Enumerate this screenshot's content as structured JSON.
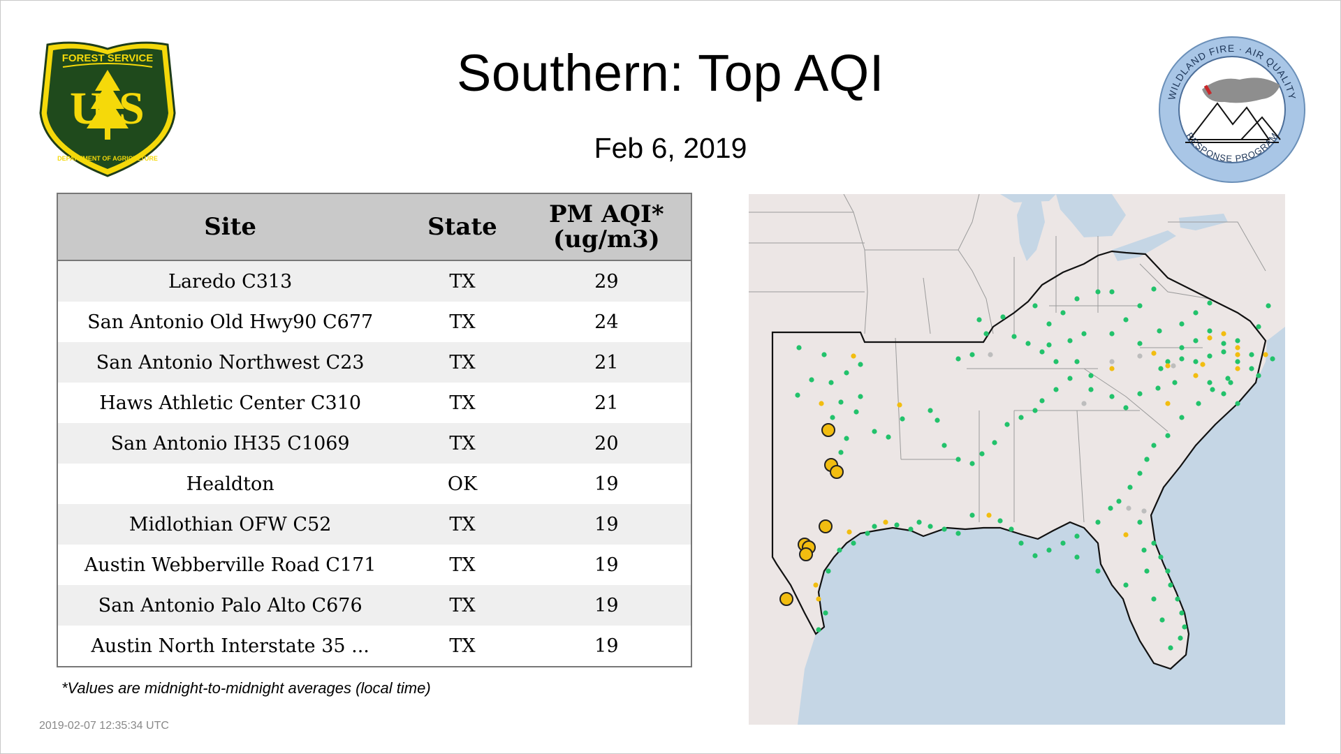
{
  "page": {
    "title": "Southern: Top AQI",
    "date": "Feb  6, 2019",
    "footnote": "*Values are midnight-to-midnight averages (local time)",
    "timestamp": "2019-02-07 12:35:34 UTC"
  },
  "logos": {
    "forest_service": {
      "top": "FOREST SERVICE",
      "bottom": "DEPARTMENT OF AGRICULTURE",
      "left_letter": "U",
      "right_letter": "S"
    },
    "wildland": {
      "top": "WILDLAND FIRE · AIR QUALITY",
      "bottom": "RESPONSE PROGRAM"
    }
  },
  "table": {
    "headers": {
      "site": "Site",
      "state": "State",
      "aqi_line1": "PM AQI*",
      "aqi_line2": "(ug/m3)"
    },
    "rows": [
      {
        "site": "Laredo C313",
        "state": "TX",
        "aqi": "29"
      },
      {
        "site": "San Antonio Old Hwy90 C677",
        "state": "TX",
        "aqi": "24"
      },
      {
        "site": "San Antonio Northwest C23",
        "state": "TX",
        "aqi": "21"
      },
      {
        "site": "Haws Athletic Center C310",
        "state": "TX",
        "aqi": "21"
      },
      {
        "site": "San Antonio IH35 C1069",
        "state": "TX",
        "aqi": "20"
      },
      {
        "site": "Healdton",
        "state": "OK",
        "aqi": "19"
      },
      {
        "site": "Midlothian OFW C52",
        "state": "TX",
        "aqi": "19"
      },
      {
        "site": "Austin Webberville Road C171",
        "state": "TX",
        "aqi": "19"
      },
      {
        "site": "San Antonio Palo Alto C676",
        "state": "TX",
        "aqi": "19"
      },
      {
        "site": "Austin North Interstate 35 ...",
        "state": "TX",
        "aqi": "19"
      }
    ]
  },
  "map": {
    "colors": {
      "land": "#ece6e5",
      "water": "#c5d6e5",
      "good": "#22c26b",
      "moderate": "#f2bd10",
      "nodata": "#bdbdbd",
      "border": "#111111"
    }
  }
}
